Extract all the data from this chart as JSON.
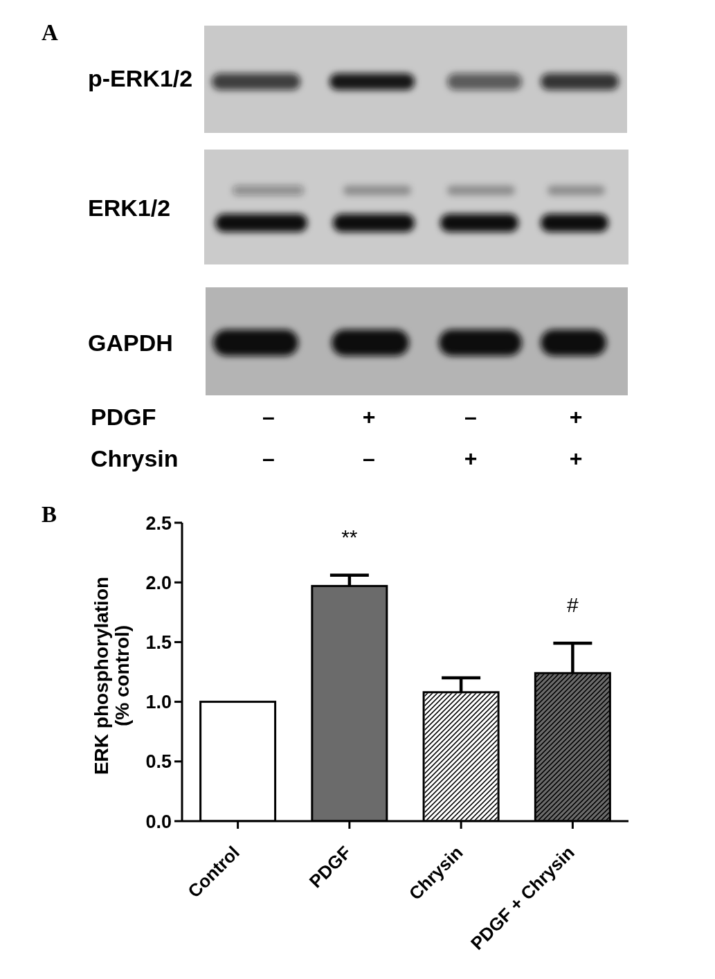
{
  "chart_data": [
    {
      "type": "other",
      "title": "A",
      "annotations": [
        "p-ERK1/2",
        "ERK1/2",
        "GAPDH",
        "PDGF",
        "Chrysin",
        "–",
        "+",
        "–",
        "+",
        "–",
        "–",
        "+",
        "+"
      ]
    },
    {
      "type": "bar",
      "title": "B",
      "ylabel": "ERK phosphorylation\n(% control)",
      "categories": [
        "Control",
        "PDGF",
        "Chrysin",
        "PDGF + Chrysin"
      ],
      "values": [
        1.0,
        1.97,
        1.08,
        1.24
      ],
      "errors": [
        null,
        [
          1.97,
          2.06
        ],
        [
          1.08,
          1.2
        ],
        [
          1.24,
          1.49
        ]
      ],
      "colors": [
        "#ffffff",
        "#6b6b6b",
        "#ffffff",
        "#6b6b6b"
      ],
      "ylim": [
        0,
        2.5
      ],
      "yticks": [
        {
          "value": 0,
          "label": "0.0"
        },
        0.5,
        {
          "value": 1,
          "label": "1.0"
        },
        1.5,
        {
          "value": 2,
          "label": "2.0"
        },
        2.5
      ],
      "annotations": [
        {
          "text": "**",
          "x": "PDGF",
          "y": 1.97
        },
        {
          "text": "#",
          "x": "PDGF + Chrysin",
          "y": 1.24
        }
      ]
    }
  ]
}
